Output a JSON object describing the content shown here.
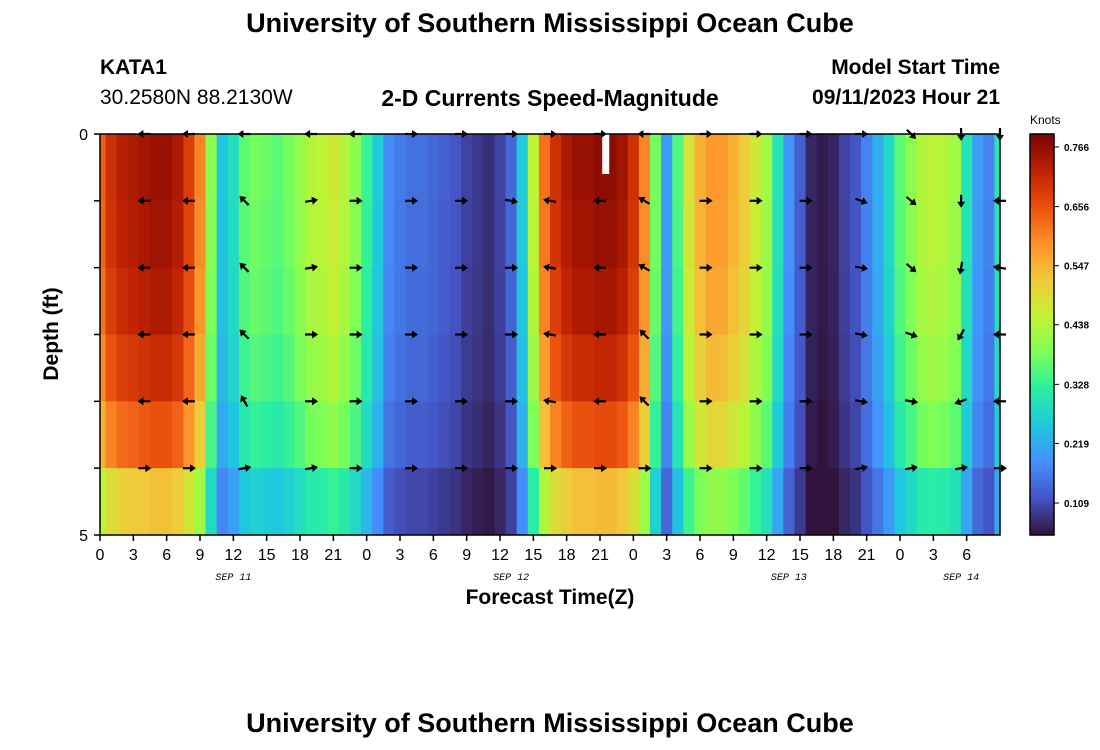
{
  "header": {
    "title": "University of Southern Mississippi Ocean Cube",
    "station_id": "KATA1",
    "station_coords": "30.2580N  88.2130W",
    "plot_title": "2-D Currents Speed-Magnitude",
    "model_start_label": "Model Start Time",
    "model_start_value": "09/11/2023 Hour 21"
  },
  "footer": {
    "title": "University of Southern Mississippi Ocean Cube"
  },
  "colors": {
    "colormap": [
      "#30123b",
      "#4454c4",
      "#4490fe",
      "#1fc8de",
      "#29efa2",
      "#7dff56",
      "#c1f334",
      "#f1ca3a",
      "#fe922a",
      "#ea4f0d",
      "#be2102",
      "#7a0403"
    ]
  },
  "chart_data": {
    "type": "heatmap",
    "title": "2-D Currents Speed-Magnitude",
    "xlabel": "Forecast Time(Z)",
    "ylabel": "Depth (ft)",
    "ylim": [
      0,
      5
    ],
    "y_tick_labels": [
      "0",
      "5"
    ],
    "colorbar": {
      "label": "Knots",
      "range": [
        0.05,
        0.79
      ],
      "ticks": [
        "0.766",
        "0.656",
        "0.547",
        "0.438",
        "0.328",
        "0.219",
        "0.109"
      ],
      "tick_values": [
        0.766,
        0.656,
        0.547,
        0.438,
        0.328,
        0.219,
        0.109
      ]
    },
    "x_hours": [
      0,
      81
    ],
    "x_tick_labels": [
      "0",
      "3",
      "6",
      "9",
      "12",
      "15",
      "18",
      "21",
      "0",
      "3",
      "6",
      "9",
      "12",
      "15",
      "18",
      "21",
      "0",
      "3",
      "6",
      "9",
      "12",
      "15",
      "18",
      "21",
      "0",
      "3",
      "6"
    ],
    "date_labels": [
      {
        "text": "SEP 11",
        "hour": 12
      },
      {
        "text": "SEP 12",
        "hour": 37
      },
      {
        "text": "SEP 13",
        "hour": 62
      },
      {
        "text": "SEP 14",
        "hour": 77.5
      }
    ],
    "depth_levels": 6,
    "speed_profile_hours": [
      0,
      1,
      2,
      3,
      4,
      5,
      6,
      7,
      8,
      9,
      10,
      11,
      12,
      13,
      14,
      15,
      16,
      17,
      18,
      19,
      20,
      21,
      22,
      23,
      24,
      25,
      26,
      27,
      28,
      29,
      30,
      31,
      32,
      33,
      34,
      35,
      36,
      37,
      38,
      39,
      40,
      41,
      42,
      43,
      44,
      45,
      46,
      47,
      48,
      49,
      50,
      51,
      52,
      53,
      54,
      55,
      56,
      57,
      58,
      59,
      60,
      61,
      62,
      63,
      64,
      65,
      66,
      67,
      68,
      69,
      70,
      71,
      72,
      73,
      74,
      75,
      76,
      77,
      78,
      79,
      80,
      81
    ],
    "surface_speed_knots": [
      0.64,
      0.7,
      0.73,
      0.74,
      0.75,
      0.76,
      0.76,
      0.74,
      0.68,
      0.6,
      0.4,
      0.25,
      0.29,
      0.36,
      0.38,
      0.37,
      0.36,
      0.38,
      0.41,
      0.44,
      0.45,
      0.47,
      0.44,
      0.4,
      0.33,
      0.26,
      0.18,
      0.16,
      0.15,
      0.15,
      0.14,
      0.13,
      0.12,
      0.1,
      0.09,
      0.08,
      0.1,
      0.14,
      0.26,
      0.45,
      0.62,
      0.7,
      0.74,
      0.76,
      0.76,
      0.77,
      0.77,
      0.75,
      0.7,
      0.6,
      0.38,
      0.2,
      0.35,
      0.48,
      0.55,
      0.58,
      0.58,
      0.55,
      0.52,
      0.47,
      0.42,
      0.3,
      0.19,
      0.13,
      0.07,
      0.06,
      0.07,
      0.1,
      0.12,
      0.17,
      0.22,
      0.28,
      0.36,
      0.4,
      0.44,
      0.45,
      0.44,
      0.42,
      0.3,
      0.2,
      0.17,
      0.3
    ],
    "arrow_hours": [
      4,
      8,
      13,
      19,
      23,
      28,
      32.5,
      37,
      40.5,
      45,
      49,
      54.5,
      59,
      63.5,
      68.5,
      73,
      77.5,
      81
    ],
    "arrow_rows": [
      {
        "depth_index": 0,
        "directions_deg": [
          180,
          180,
          180,
          180,
          180,
          0,
          0,
          0,
          0,
          0,
          180,
          0,
          0,
          0,
          0,
          -45,
          -90,
          -90
        ]
      },
      {
        "depth_index": 1,
        "directions_deg": [
          180,
          180,
          135,
          10,
          0,
          0,
          0,
          -10,
          170,
          180,
          150,
          0,
          0,
          0,
          -20,
          -40,
          -90,
          180
        ]
      },
      {
        "depth_index": 2,
        "directions_deg": [
          180,
          180,
          135,
          10,
          0,
          0,
          0,
          0,
          170,
          180,
          150,
          0,
          0,
          0,
          -10,
          -40,
          -100,
          170
        ]
      },
      {
        "depth_index": 3,
        "directions_deg": [
          180,
          180,
          135,
          0,
          0,
          0,
          0,
          0,
          170,
          180,
          135,
          0,
          0,
          0,
          -10,
          -20,
          -120,
          180
        ]
      },
      {
        "depth_index": 4,
        "directions_deg": [
          180,
          180,
          120,
          0,
          0,
          0,
          0,
          0,
          170,
          180,
          135,
          0,
          0,
          0,
          -10,
          -10,
          -160,
          180
        ]
      },
      {
        "depth_index": 5,
        "directions_deg": [
          0,
          0,
          10,
          10,
          0,
          0,
          0,
          0,
          0,
          0,
          0,
          0,
          0,
          0,
          10,
          10,
          10,
          0
        ]
      }
    ]
  }
}
